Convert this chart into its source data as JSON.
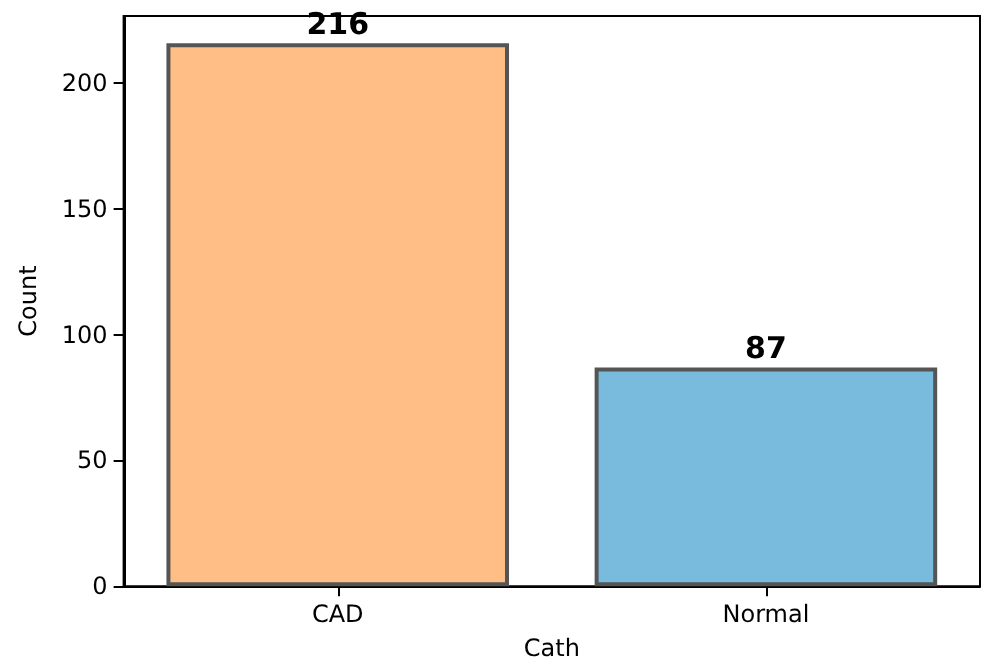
{
  "chart_data": {
    "type": "bar",
    "xlabel": "Cath",
    "ylabel": "Count",
    "categories": [
      "CAD",
      "Normal"
    ],
    "values": [
      216,
      87
    ],
    "colors": [
      "#ffbe86",
      "#78bbdc"
    ],
    "ylim": [
      0,
      226.8
    ],
    "yticks": [
      0,
      50,
      100,
      150,
      200
    ],
    "grid": false,
    "data_labels": true
  }
}
